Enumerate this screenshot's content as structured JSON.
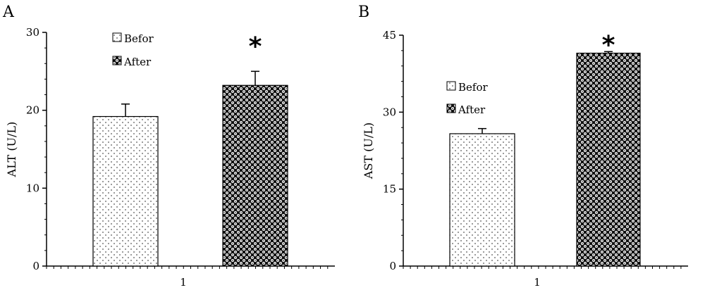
{
  "chart_data": [
    {
      "panel": "A",
      "type": "bar",
      "categories": [
        "1"
      ],
      "ylabel": "ALT (U/L)",
      "ylim": [
        0,
        30
      ],
      "yticks": [
        0,
        10,
        20,
        30
      ],
      "series": [
        {
          "name": "Befor",
          "values": [
            19.2
          ],
          "error": [
            1.6
          ],
          "pattern": "sparse-dots"
        },
        {
          "name": "After",
          "values": [
            23.2
          ],
          "error": [
            1.8
          ],
          "pattern": "dense-circles"
        }
      ],
      "annotation": "*",
      "legend_position": "top-left"
    },
    {
      "panel": "B",
      "type": "bar",
      "categories": [
        "1"
      ],
      "ylabel": "AST (U/L)",
      "ylim": [
        0,
        45
      ],
      "yticks": [
        0,
        15,
        30,
        45
      ],
      "series": [
        {
          "name": "Befor",
          "values": [
            25.8
          ],
          "error": [
            1.0
          ],
          "pattern": "sparse-dots"
        },
        {
          "name": "After",
          "values": [
            41.5
          ],
          "error": [
            0.3
          ],
          "pattern": "dense-circles"
        }
      ],
      "annotation": "*",
      "legend_position": "middle-left"
    }
  ]
}
